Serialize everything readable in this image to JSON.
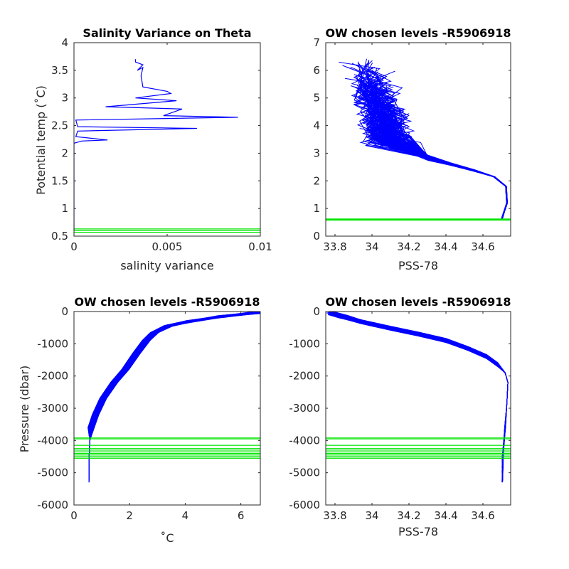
{
  "colors": {
    "profile": "#0000ff",
    "chosen_level": "#00e600",
    "axis": "#262626",
    "background": "#ffffff"
  },
  "chart_data": [
    {
      "type": "line",
      "title": "Salinity Variance on Theta",
      "xlabel": "salinity variance",
      "ylabel": "Potential temp (˚C)",
      "xlim": [
        0,
        0.01
      ],
      "ylim": [
        0.5,
        4
      ],
      "xticks": [
        "0",
        "0.005",
        "0.01"
      ],
      "yticks": [
        "0.5",
        "1",
        "1.5",
        "2",
        "2.5",
        "3",
        "3.5",
        "4"
      ],
      "series": [
        {
          "x": [
            0.0,
            0.0,
            0.0,
            0.0,
            0.0,
            0.0,
            0.0,
            0.0,
            0.0,
            0.0,
            0.0002,
            0.0004,
            0.0018,
            0.0001,
            0.0002,
            0.0066,
            0.0002,
            0.0001,
            0.0088,
            0.0048,
            0.0058,
            0.0028,
            0.0017,
            0.0055,
            0.0033,
            0.0052,
            0.005,
            0.0037,
            0.0036,
            0.0037,
            0.0034,
            0.0037,
            0.0033,
            0.0033
          ],
          "y": [
            0.6,
            0.8,
            1.0,
            1.2,
            1.5,
            1.8,
            2.0,
            2.1,
            2.15,
            2.18,
            2.2,
            2.22,
            2.24,
            2.3,
            2.4,
            2.45,
            2.48,
            2.6,
            2.65,
            2.68,
            2.8,
            2.83,
            2.84,
            2.95,
            3.0,
            3.08,
            3.12,
            3.2,
            3.4,
            3.55,
            3.5,
            3.6,
            3.65,
            3.7
          ]
        }
      ],
      "reference_lines_y": [
        0.57,
        0.6,
        0.63
      ]
    },
    {
      "type": "line",
      "title": "OW chosen levels -R5906918",
      "xlabel": "PSS-78",
      "ylabel": "",
      "xlim": [
        33.75,
        34.75
      ],
      "ylim": [
        0,
        7
      ],
      "xticks": [
        "33.8",
        "34",
        "34.2",
        "34.4",
        "34.6"
      ],
      "yticks": [
        "0",
        "1",
        "2",
        "3",
        "4",
        "5",
        "6",
        "7"
      ],
      "reference_lines_y": [
        0.58,
        0.6,
        0.62
      ]
    },
    {
      "type": "line",
      "title": "OW chosen levels -R5906918",
      "xlabel": "˚C",
      "ylabel": "Pressure (dbar)",
      "xlim": [
        0,
        6.7
      ],
      "ylim": [
        -6000,
        0
      ],
      "xticks": [
        "0",
        "2",
        "4",
        "6"
      ],
      "yticks": [
        "-6000",
        "-5000",
        "-4000",
        "-3000",
        "-2000",
        "-1000",
        "0"
      ],
      "reference_lines_y": [
        -3920,
        -3950,
        -4150,
        -4250,
        -4300,
        -4350,
        -4400,
        -4450,
        -4500,
        -4550
      ]
    },
    {
      "type": "line",
      "title": "OW chosen levels -R5906918",
      "xlabel": "PSS-78",
      "ylabel": "",
      "xlim": [
        33.75,
        34.75
      ],
      "ylim": [
        -6000,
        0
      ],
      "xticks": [
        "33.8",
        "34",
        "34.2",
        "34.4",
        "34.6"
      ],
      "yticks": [
        "-6000",
        "-5000",
        "-4000",
        "-3000",
        "-2000",
        "-1000",
        "0"
      ],
      "reference_lines_y": [
        -3920,
        -3950,
        -4150,
        -4250,
        -4300,
        -4350,
        -4400,
        -4450,
        -4500,
        -4550
      ]
    }
  ]
}
